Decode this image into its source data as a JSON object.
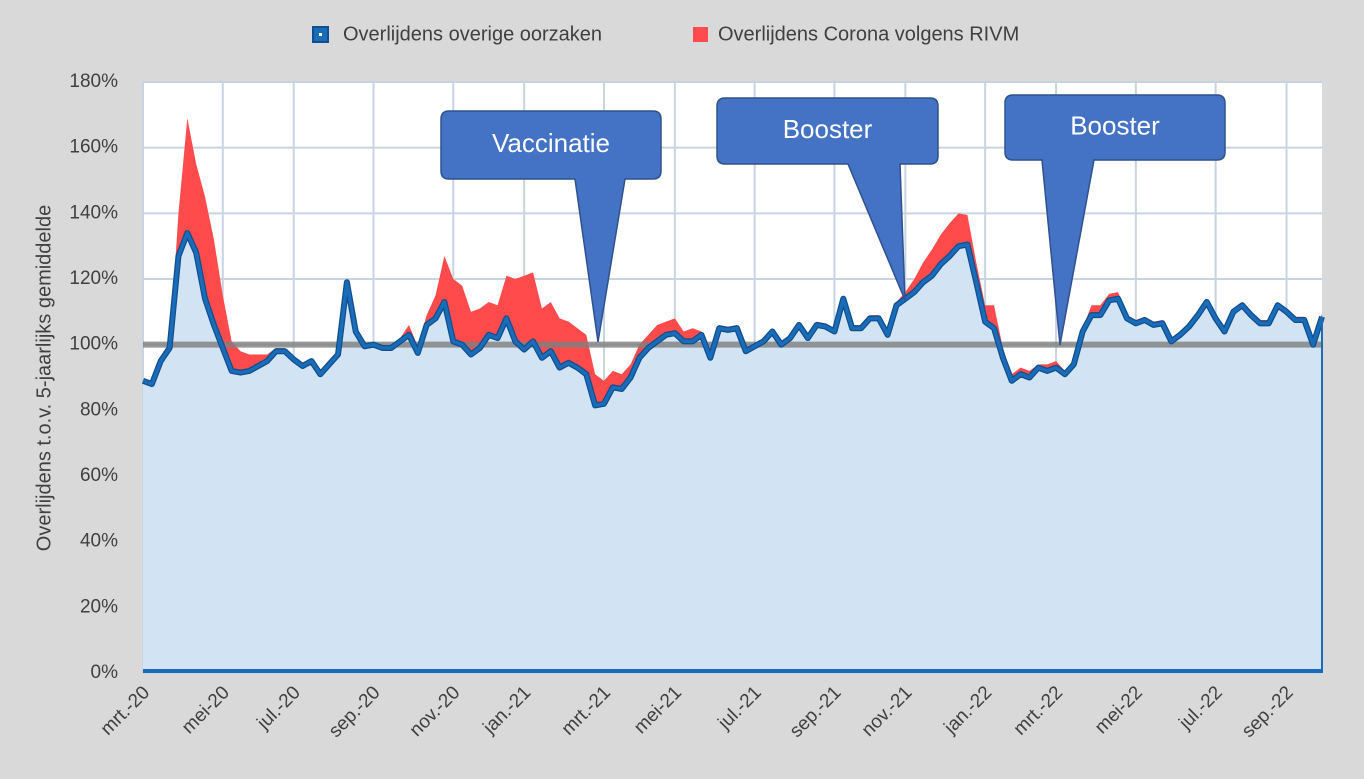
{
  "chart_data": {
    "type": "stacked-area",
    "y_label": "Overlijdens t.o.v. 5-jaarlijks gemiddelde",
    "categories": [
      "mrt.-20",
      null,
      null,
      null,
      null,
      null,
      null,
      null,
      null,
      "mei-20",
      null,
      null,
      null,
      null,
      null,
      null,
      null,
      "jul.-20",
      null,
      null,
      null,
      null,
      null,
      null,
      null,
      null,
      "sep.-20",
      null,
      null,
      null,
      null,
      null,
      null,
      null,
      null,
      "nov.-20",
      null,
      null,
      null,
      null,
      null,
      null,
      null,
      "jan.-21",
      null,
      null,
      null,
      null,
      null,
      null,
      null,
      null,
      "mrt.-21",
      null,
      null,
      null,
      null,
      null,
      null,
      null,
      "mei-21",
      null,
      null,
      null,
      null,
      null,
      null,
      null,
      null,
      "jul.-21",
      null,
      null,
      null,
      null,
      null,
      null,
      null,
      null,
      "sep.-21",
      null,
      null,
      null,
      null,
      null,
      null,
      null,
      "nov.-21",
      null,
      null,
      null,
      null,
      null,
      null,
      null,
      null,
      "jan.-22",
      null,
      null,
      null,
      null,
      null,
      null,
      null,
      "mrt.-22",
      null,
      null,
      null,
      null,
      null,
      null,
      null,
      null,
      "mei-22",
      null,
      null,
      null,
      null,
      null,
      null,
      null,
      null,
      "jul.-22",
      null,
      null,
      null,
      null,
      null,
      null,
      null,
      "sep.-22",
      null,
      null,
      null,
      null
    ],
    "series": [
      {
        "name": "Overlijdens overige oorzaken",
        "color": "#1a6bb8",
        "fill": "#d2e4f4",
        "values": [
          89,
          88,
          95,
          99,
          127,
          134,
          128,
          114,
          106,
          99,
          92,
          91.5,
          92,
          93.5,
          95,
          98,
          98,
          95.5,
          93.5,
          95,
          91,
          94,
          97,
          119,
          104,
          99.5,
          100,
          99,
          99,
          101,
          103,
          97.5,
          106,
          108,
          113,
          101,
          100,
          97,
          99,
          103,
          102,
          108,
          101,
          98.5,
          101,
          96,
          98,
          93,
          94.5,
          93,
          91,
          81.5,
          82,
          87,
          86.5,
          90,
          96,
          99,
          101,
          103,
          103.5,
          101,
          101,
          103,
          96,
          105,
          104.5,
          105,
          98,
          99.5,
          101,
          104,
          100,
          102,
          106,
          102,
          106,
          105.5,
          104,
          114,
          105,
          105,
          108,
          108,
          103,
          112,
          114,
          116,
          119,
          121,
          124.5,
          127,
          130,
          130.5,
          119,
          107,
          105,
          96,
          89,
          91,
          90,
          93,
          92,
          93,
          91,
          94,
          104,
          109,
          109,
          113.5,
          114,
          108,
          106.5,
          107.5,
          106,
          106.5,
          101,
          103,
          105.5,
          109,
          113,
          108,
          104,
          110,
          112,
          109,
          106.5,
          106.5,
          112,
          110,
          107.5,
          107.5,
          100,
          108.5
        ]
      },
      {
        "name": "Overlijdens Corona volgens RIVM",
        "color": "#ff4b4b",
        "values": [
          0,
          0,
          0,
          0,
          13,
          35,
          27,
          31,
          26,
          16,
          9,
          6.5,
          5,
          3.5,
          2,
          1,
          1,
          1,
          0,
          0,
          0,
          0,
          0,
          0,
          0,
          0,
          0,
          0,
          0,
          1,
          3,
          2,
          3,
          7,
          14,
          19,
          18,
          13,
          12,
          10,
          10,
          13,
          19,
          22.5,
          21,
          15,
          15,
          15,
          12.5,
          12,
          12,
          9.5,
          7,
          5,
          4.5,
          4,
          4,
          4,
          5,
          4,
          4.5,
          3,
          4,
          1,
          1,
          1,
          1,
          1,
          1,
          1,
          1,
          1,
          1,
          1,
          1,
          1,
          1,
          1,
          1,
          1,
          1,
          1,
          1,
          1,
          1,
          1,
          2,
          4,
          6,
          8,
          9,
          10,
          10,
          9,
          6,
          5,
          7,
          3,
          2,
          2,
          2,
          1,
          2,
          2,
          1,
          1,
          1,
          3,
          3,
          2,
          2,
          1,
          1,
          1,
          1,
          1,
          1,
          1,
          1,
          1,
          1,
          1,
          1,
          1,
          1,
          1,
          1,
          1,
          1,
          1,
          1,
          1,
          1,
          1
        ]
      }
    ],
    "ylim": [
      0,
      180
    ],
    "yticks": [
      {
        "value": 0,
        "label": "0%"
      },
      {
        "value": 20,
        "label": "20%"
      },
      {
        "value": 40,
        "label": "40%"
      },
      {
        "value": 60,
        "label": "60%"
      },
      {
        "value": 80,
        "label": "80%"
      },
      {
        "value": 100,
        "label": "100%"
      },
      {
        "value": 120,
        "label": "120%"
      },
      {
        "value": 140,
        "label": "140%"
      },
      {
        "value": 160,
        "label": "160%"
      },
      {
        "value": 180,
        "label": "180%"
      }
    ],
    "reference_line": 100,
    "grid": true,
    "legend": "top",
    "annotations": [
      "Vaccinatie",
      "Booster",
      "Booster"
    ]
  }
}
